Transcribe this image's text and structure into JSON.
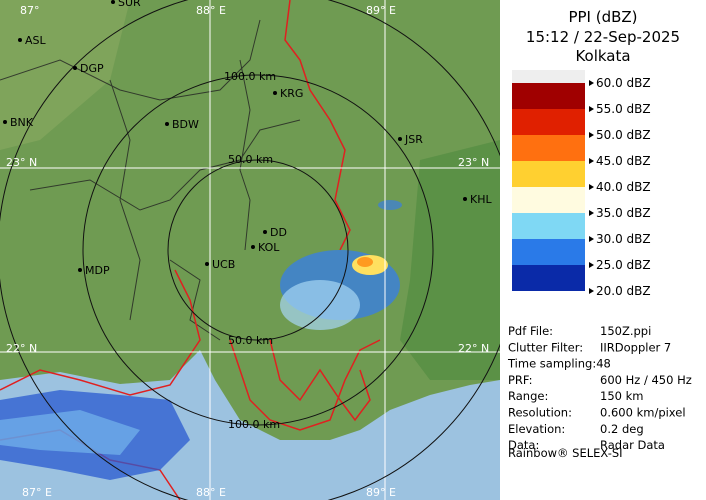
{
  "header": {
    "title": "PPI (dBZ)",
    "time": "15:12 / 22-Sep-2025",
    "station": "Kolkata"
  },
  "legend": {
    "labels": [
      "60.0 dBZ",
      "55.0 dBZ",
      "50.0 dBZ",
      "45.0 dBZ",
      "40.0 dBZ",
      "35.0 dBZ",
      "30.0 dBZ",
      "25.0 dBZ",
      "20.0 dBZ"
    ]
  },
  "info": {
    "rows": [
      [
        "Pdf File:",
        "150Z.ppi"
      ],
      [
        "Clutter Filter:",
        "IIRDoppler 7"
      ],
      [
        "Time sampling:48"
      ],
      [
        "PRF:",
        "600 Hz / 450 Hz"
      ],
      [
        "Range:",
        "150 km"
      ],
      [
        "Resolution:",
        "0.600 km/pixel"
      ],
      [
        "Elevation:",
        "0.2 deg"
      ],
      [
        "Data:",
        "Radar Data"
      ]
    ],
    "footer": "Rainbow® SELEX-SI"
  },
  "map": {
    "places": [
      "SUR",
      "ASL",
      "DGP",
      "KRG",
      "BDW",
      "BNK",
      "JSR",
      "KHL",
      "DD",
      "KOL",
      "UCB",
      "MDP"
    ],
    "grid_labels": [
      "87°",
      "88° E",
      "89° E",
      "23° N",
      "23° N",
      "22° N",
      "22° N",
      "87° E",
      "88° E",
      "89° E"
    ],
    "ring_labels": [
      "100.0 km",
      "50.0 km",
      "50.0 km",
      "100.0 km"
    ]
  }
}
